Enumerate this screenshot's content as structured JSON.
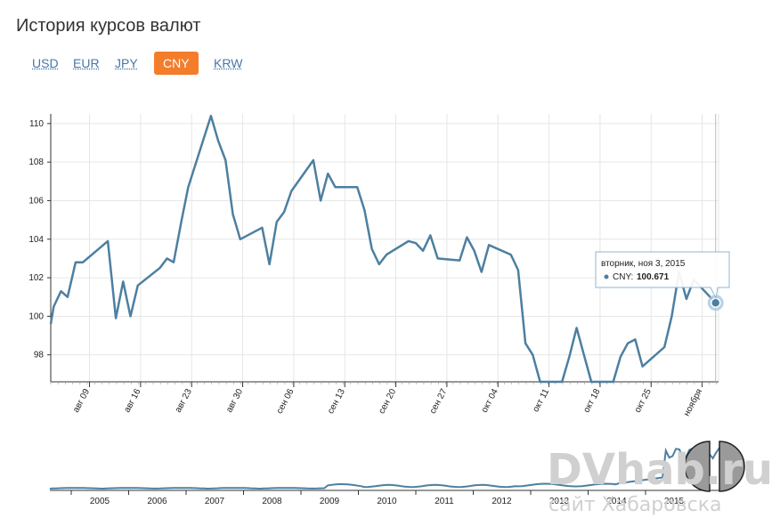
{
  "page": {
    "title": "История курсов валют"
  },
  "tabs": [
    {
      "label": "USD",
      "active": false
    },
    {
      "label": "EUR",
      "active": false
    },
    {
      "label": "JPY",
      "active": false
    },
    {
      "label": "CNY",
      "active": true
    },
    {
      "label": "KRW",
      "active": false
    }
  ],
  "tooltip": {
    "date": "вторник, ноя 3, 2015",
    "series": "CNY:",
    "value": "100.671"
  },
  "watermark": {
    "brand": "DVhab.ru",
    "subtitle": "сайт Хабаровска"
  },
  "chart_data": {
    "type": "line",
    "ylim": [
      96.6,
      110.5
    ],
    "yticks": [
      "98",
      "100",
      "102",
      "104",
      "106",
      "108",
      "110"
    ],
    "xticks": [
      "авг 09",
      "авг 16",
      "авг 23",
      "авг 30",
      "сен 06",
      "сен 13",
      "сен 20",
      "сен 27",
      "окт 04",
      "окт 11",
      "окт 18",
      "окт 25",
      "ноября"
    ],
    "series": [
      {
        "values": [
          [
            0,
            99.6
          ],
          [
            0.4,
            100.5
          ],
          [
            1.4,
            101.3
          ],
          [
            2.3,
            101
          ],
          [
            3.4,
            102.8
          ],
          [
            4.4,
            102.8
          ],
          [
            7.8,
            103.9
          ],
          [
            8.9,
            99.9
          ],
          [
            9.9,
            101.8
          ],
          [
            10.9,
            100
          ],
          [
            11.9,
            101.6
          ],
          [
            14.9,
            102.5
          ],
          [
            15.9,
            103
          ],
          [
            16.8,
            102.8
          ],
          [
            17.9,
            105
          ],
          [
            18.8,
            106.7
          ],
          [
            21.9,
            110.4
          ],
          [
            22.9,
            109.1
          ],
          [
            23.9,
            108.1
          ],
          [
            24.9,
            105.3
          ],
          [
            25.9,
            104
          ],
          [
            28.9,
            104.6
          ],
          [
            29.9,
            102.7
          ],
          [
            30.9,
            104.9
          ],
          [
            31.9,
            105.4
          ],
          [
            32.9,
            106.5
          ],
          [
            35.9,
            108.1
          ],
          [
            36.9,
            106
          ],
          [
            37.9,
            107.4
          ],
          [
            38.9,
            106.7
          ],
          [
            41.9,
            106.7
          ],
          [
            42.9,
            105.5
          ],
          [
            43.9,
            103.5
          ],
          [
            44.9,
            102.7
          ],
          [
            45.9,
            103.2
          ],
          [
            48.9,
            103.9
          ],
          [
            49.9,
            103.8
          ],
          [
            50.9,
            103.4
          ],
          [
            51.9,
            104.2
          ],
          [
            52.9,
            103
          ],
          [
            55.9,
            102.9
          ],
          [
            56.9,
            104.1
          ],
          [
            57.9,
            103.4
          ],
          [
            58.9,
            102.3
          ],
          [
            59.9,
            103.7
          ],
          [
            62.9,
            103.2
          ],
          [
            63.9,
            102.4
          ],
          [
            64.9,
            98.6
          ],
          [
            65.9,
            98
          ],
          [
            66.9,
            96.6
          ],
          [
            69.9,
            96.6
          ],
          [
            70.9,
            97.9
          ],
          [
            71.9,
            99.4
          ],
          [
            72.9,
            98
          ],
          [
            73.9,
            96.6
          ],
          [
            76.9,
            96.6
          ],
          [
            77.9,
            97.9
          ],
          [
            78.9,
            98.6
          ],
          [
            79.9,
            98.8
          ],
          [
            80.9,
            97.4
          ],
          [
            83.9,
            98.4
          ],
          [
            84.9,
            100
          ],
          [
            85.9,
            102.3
          ],
          [
            86.9,
            100.9
          ],
          [
            87.9,
            101.9
          ],
          [
            90.9,
            100.7
          ]
        ]
      }
    ],
    "navigator": {
      "labels": [
        "2005",
        "2006",
        "2007",
        "2008",
        "2009",
        "2010",
        "2011",
        "2012",
        "2013",
        "2014",
        "2015"
      ]
    }
  }
}
